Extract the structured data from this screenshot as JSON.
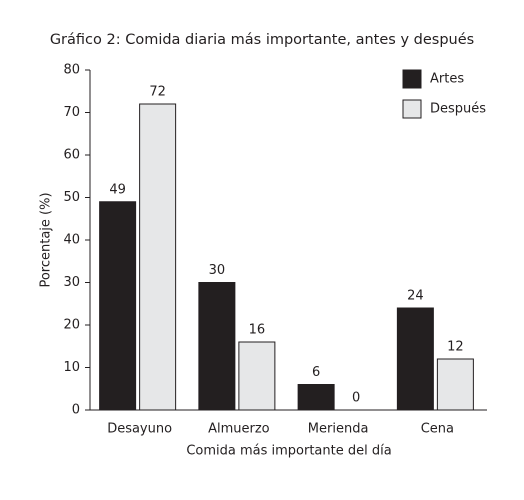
{
  "chart_data": {
    "type": "bar",
    "title": "Gráfico 2: Comida diaria más importante, antes y después",
    "x_label": "Comida más importante del día",
    "y_label": "Porcentaje (%)",
    "categories": [
      "Desayuno",
      "Almuerzo",
      "Merienda",
      "Cena"
    ],
    "series": [
      {
        "name": "Artes",
        "color": "#231f20",
        "values": [
          49,
          30,
          6,
          24
        ]
      },
      {
        "name": "Después",
        "color": "#e6e7e8",
        "values": [
          72,
          16,
          0,
          12
        ]
      }
    ],
    "ylim": [
      0,
      80
    ],
    "yticks": [
      0,
      10,
      20,
      30,
      40,
      50,
      60,
      70,
      80
    ],
    "legend": "top-right"
  }
}
